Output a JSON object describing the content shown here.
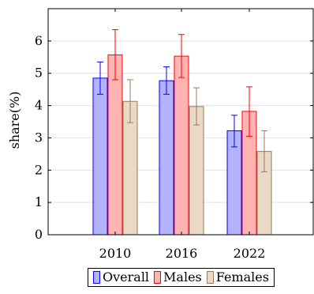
{
  "chart_data": {
    "type": "bar",
    "categories": [
      "2010",
      "2016",
      "2022"
    ],
    "ylabel": "share(%)",
    "ylim": [
      0,
      7
    ],
    "yticks": [
      0,
      1,
      2,
      3,
      4,
      5,
      6
    ],
    "grid": "horizontal",
    "legend_placement": "bottom-center",
    "series": [
      {
        "name": "Overall",
        "values": [
          4.85,
          4.77,
          3.22
        ],
        "error": [
          [
            4.35,
            5.35
          ],
          [
            4.35,
            5.2
          ],
          [
            2.72,
            3.7
          ]
        ],
        "fill": "#b3b3ff",
        "stroke": "#0000ff"
      },
      {
        "name": "Males",
        "values": [
          5.57,
          5.53,
          3.82
        ],
        "error": [
          [
            4.8,
            6.35
          ],
          [
            4.87,
            6.2
          ],
          [
            3.05,
            4.58
          ]
        ],
        "fill": "#ffb3b3",
        "stroke": "#ff0000"
      },
      {
        "name": "Females",
        "values": [
          4.13,
          3.97,
          2.58
        ],
        "error": [
          [
            3.47,
            4.8
          ],
          [
            3.4,
            4.55
          ],
          [
            1.95,
            3.22
          ]
        ],
        "fill": "#ead9c6",
        "stroke": "#997a5c"
      }
    ]
  }
}
